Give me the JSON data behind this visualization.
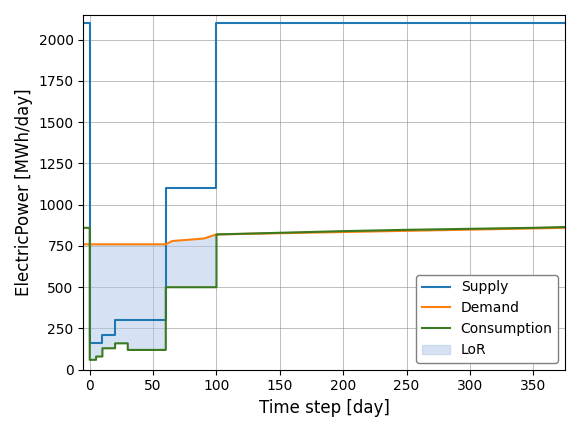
{
  "supply_x": [
    -5,
    0,
    0,
    0,
    10,
    10,
    20,
    20,
    60,
    60,
    100,
    100,
    375
  ],
  "supply_y": [
    2100,
    2100,
    760,
    160,
    160,
    210,
    210,
    300,
    300,
    1100,
    1100,
    2100,
    2100
  ],
  "demand_x": [
    -5,
    0,
    60,
    65,
    90,
    100,
    375
  ],
  "demand_y": [
    760,
    760,
    760,
    780,
    795,
    820,
    860
  ],
  "consumption_x": [
    -5,
    0,
    0,
    5,
    5,
    10,
    10,
    20,
    20,
    30,
    30,
    60,
    60,
    90,
    90,
    100,
    100,
    150,
    200,
    250,
    300,
    350,
    375
  ],
  "consumption_y": [
    860,
    860,
    60,
    60,
    80,
    80,
    130,
    130,
    160,
    160,
    120,
    120,
    500,
    500,
    500,
    500,
    820,
    830,
    840,
    848,
    854,
    860,
    865
  ],
  "supply_color": "#1f77b4",
  "demand_color": "#ff7f0e",
  "consumption_color": "#3a7a1e",
  "lor_color": "#aec6e8",
  "lor_alpha": 0.5,
  "xlabel": "Time step [day]",
  "ylabel": "ElectricPower [MWh/day]",
  "xlim": [
    -5,
    375
  ],
  "ylim": [
    0,
    2150
  ],
  "figsize": [
    5.8,
    4.32
  ],
  "dpi": 100,
  "legend_labels": [
    "Supply",
    "Demand",
    "Consumption",
    "LoR"
  ],
  "xticks": [
    0,
    50,
    100,
    150,
    200,
    250,
    300,
    350
  ],
  "yticks": [
    0,
    250,
    500,
    750,
    1000,
    1250,
    1500,
    1750,
    2000
  ]
}
